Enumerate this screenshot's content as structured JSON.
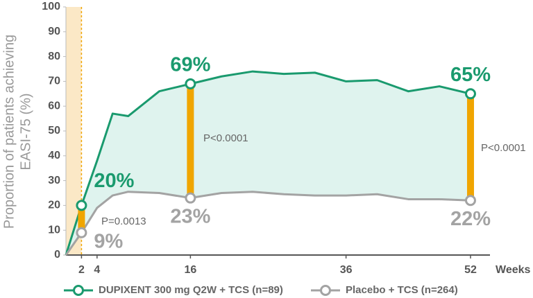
{
  "chart_data": {
    "type": "line",
    "y_label": [
      "Proportion of patients achieving",
      "EASI-75 (%)"
    ],
    "x_label": "Weeks",
    "x": [
      0,
      2,
      4,
      6,
      8,
      12,
      16,
      20,
      24,
      28,
      32,
      36,
      40,
      44,
      48,
      52
    ],
    "series": [
      {
        "name": "DUPIXENT 300 mg Q2W + TCS (n=89)",
        "color": "#1a9a6e",
        "values": [
          0,
          20,
          38,
          57,
          56,
          66,
          69,
          72,
          74,
          73,
          73.5,
          70,
          70.5,
          66,
          68,
          65
        ],
        "value_labels": [
          null,
          "20%",
          null,
          null,
          null,
          null,
          "69%",
          null,
          null,
          null,
          null,
          null,
          null,
          null,
          null,
          "65%"
        ]
      },
      {
        "name": "Placebo + TCS (n=264)",
        "color": "#a3a3a3",
        "values": [
          0,
          9,
          19,
          24,
          25.5,
          25,
          23,
          25,
          25.5,
          24.5,
          24,
          24,
          24.5,
          22.5,
          22.5,
          22
        ],
        "value_labels": [
          null,
          "9%",
          null,
          null,
          null,
          null,
          "23%",
          null,
          null,
          null,
          null,
          null,
          null,
          null,
          null,
          "22%"
        ]
      }
    ],
    "annotations": [
      "P=0.0013",
      "P<0.0001",
      "P<0.0001"
    ],
    "xlim": [
      0,
      54.5
    ],
    "xticks": [
      2,
      4,
      16,
      36,
      52
    ],
    "ylim": [
      0,
      100
    ],
    "yticks": [
      0,
      10,
      20,
      30,
      40,
      50,
      60,
      70,
      80,
      90,
      100
    ],
    "highlight_color": "#f0a500"
  }
}
